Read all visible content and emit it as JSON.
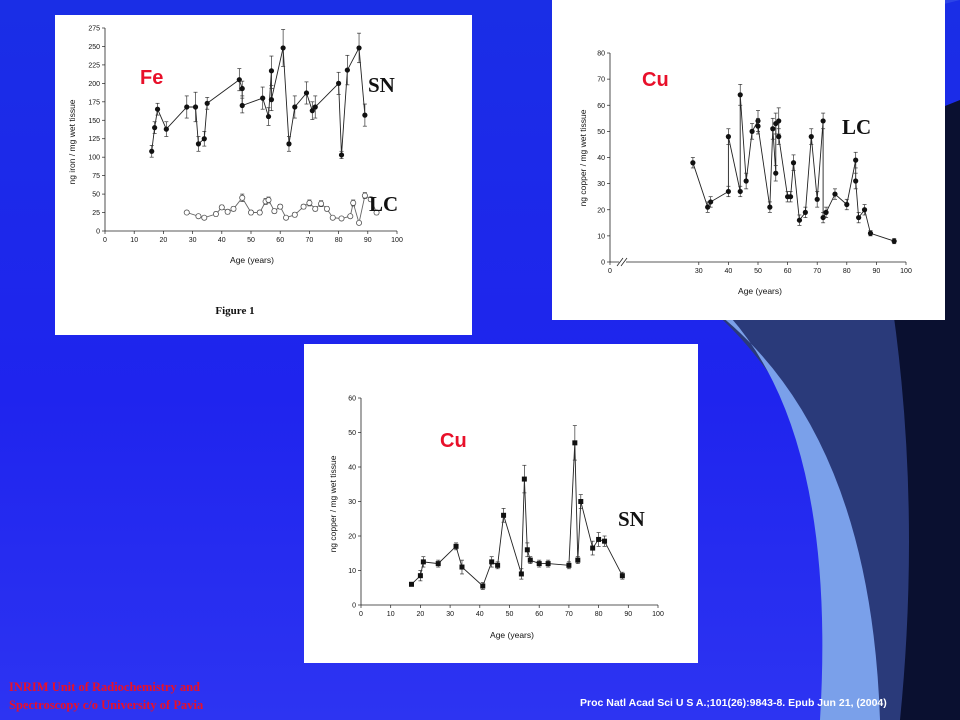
{
  "slide": {
    "footer_left": [
      "INRIM Unit of Radiochemistry and",
      "Spectroscopy c/o University of Pavia"
    ],
    "citation": "Proc Natl Acad Sci U S A.;101(26):9843-8. Epub  Jun 21, (2004)",
    "colors": {
      "background": "#1f24ee",
      "footer_left": "#e8102a",
      "element_label": "#e8102a"
    }
  },
  "chart_data": [
    {
      "type": "line",
      "element_label": "Fe",
      "caption": "Figure 1",
      "xlabel": "Age (years)",
      "ylabel": "ng iron / mg wet tissue",
      "xlim": [
        0,
        100
      ],
      "ylim": [
        0,
        275
      ],
      "xticks": [
        0,
        10,
        20,
        30,
        40,
        50,
        60,
        70,
        80,
        90,
        100
      ],
      "yticks": [
        0,
        25,
        50,
        75,
        100,
        125,
        150,
        175,
        200,
        225,
        250,
        275
      ],
      "grid": false,
      "series": [
        {
          "name": "SN",
          "marker": "filled-circle",
          "x": [
            16,
            17,
            18,
            21,
            28,
            31,
            32,
            34,
            35,
            46,
            47,
            47,
            54,
            56,
            57,
            57,
            61,
            63,
            65,
            69,
            71,
            72,
            80,
            81,
            83,
            87,
            89
          ],
          "y": [
            108,
            140,
            165,
            138,
            168,
            168,
            118,
            125,
            173,
            205,
            193,
            170,
            180,
            155,
            217,
            178,
            248,
            118,
            168,
            187,
            163,
            168,
            200,
            103,
            218,
            248,
            157
          ],
          "err": [
            8,
            8,
            8,
            10,
            15,
            20,
            10,
            10,
            8,
            15,
            10,
            10,
            15,
            12,
            20,
            15,
            25,
            10,
            15,
            15,
            12,
            15,
            15,
            5,
            20,
            20,
            15
          ]
        },
        {
          "name": "LC",
          "marker": "open-circle",
          "x": [
            28,
            32,
            34,
            38,
            40,
            42,
            44,
            47,
            50,
            53,
            55,
            56,
            58,
            60,
            62,
            65,
            68,
            70,
            72,
            74,
            76,
            78,
            81,
            84,
            85,
            87,
            89,
            91,
            93
          ],
          "y": [
            25,
            20,
            18,
            23,
            32,
            26,
            30,
            45,
            25,
            25,
            40,
            42,
            27,
            33,
            18,
            22,
            33,
            38,
            30,
            37,
            30,
            18,
            17,
            20,
            38,
            11,
            48,
            43,
            25
          ],
          "err": [
            2,
            2,
            2,
            3,
            3,
            3,
            3,
            5,
            3,
            3,
            4,
            4,
            3,
            3,
            2,
            3,
            3,
            4,
            3,
            4,
            3,
            2,
            2,
            2,
            4,
            2,
            4,
            3,
            3
          ]
        }
      ]
    },
    {
      "type": "line",
      "element_label": "Cu",
      "region_label": "LC",
      "xlabel": "Age (years)",
      "ylabel": "ng copper / mg wet tissue",
      "xlim": [
        0,
        100
      ],
      "ylim": [
        0,
        80
      ],
      "x_axis_break": true,
      "xticks": [
        0,
        30,
        40,
        50,
        60,
        70,
        80,
        90,
        100
      ],
      "yticks": [
        0,
        10,
        20,
        30,
        40,
        50,
        60,
        70,
        80
      ],
      "grid": false,
      "series": [
        {
          "marker": "filled-circle",
          "x": [
            28,
            33,
            34,
            40,
            40,
            44,
            44,
            46,
            48,
            50,
            50,
            54,
            55,
            56,
            56,
            57,
            57,
            60,
            61,
            62,
            64,
            66,
            68,
            70,
            72,
            72,
            73,
            76,
            80,
            83,
            83,
            84,
            86,
            88,
            96
          ],
          "y": [
            38,
            21,
            23,
            27,
            48,
            27,
            64,
            31,
            50,
            54,
            52,
            21,
            51,
            34,
            53,
            54,
            48,
            25,
            25,
            38,
            16,
            19,
            48,
            24,
            54,
            17,
            19,
            26,
            22,
            39,
            31,
            17,
            20,
            11,
            8
          ],
          "err": [
            2,
            2,
            2,
            2,
            3,
            2,
            4,
            3,
            3,
            4,
            3,
            2,
            4,
            3,
            4,
            5,
            3,
            2,
            2,
            3,
            2,
            2,
            3,
            3,
            3,
            2,
            2,
            2,
            2,
            3,
            3,
            2,
            2,
            1,
            1
          ]
        }
      ]
    },
    {
      "type": "line",
      "element_label": "Cu",
      "region_label": "SN",
      "xlabel": "Age (years)",
      "ylabel": "ng copper / mg wet tissue",
      "xlim": [
        0,
        100
      ],
      "ylim": [
        0,
        60
      ],
      "xticks": [
        0,
        10,
        20,
        30,
        40,
        50,
        60,
        70,
        80,
        90,
        100
      ],
      "yticks": [
        0,
        10,
        20,
        30,
        40,
        50,
        60
      ],
      "grid": false,
      "series": [
        {
          "marker": "filled-square",
          "x": [
            17,
            20,
            21,
            26,
            32,
            34,
            41,
            44,
            46,
            48,
            54,
            55,
            56,
            57,
            60,
            63,
            70,
            72,
            73,
            74,
            78,
            80,
            82,
            88
          ],
          "y": [
            6,
            8.5,
            12.5,
            12,
            17,
            11,
            5.5,
            12.5,
            11.5,
            26,
            9,
            36.5,
            16,
            13,
            12,
            12,
            11.5,
            47,
            13,
            30,
            16.5,
            19,
            18.5,
            8.5
          ],
          "err": [
            0.5,
            1.5,
            1.5,
            1,
            1,
            2,
            1,
            1.5,
            1,
            2,
            1.5,
            4,
            2,
            1,
            1,
            1,
            1,
            5,
            1,
            2,
            2,
            2,
            1.5,
            1
          ]
        }
      ]
    }
  ]
}
